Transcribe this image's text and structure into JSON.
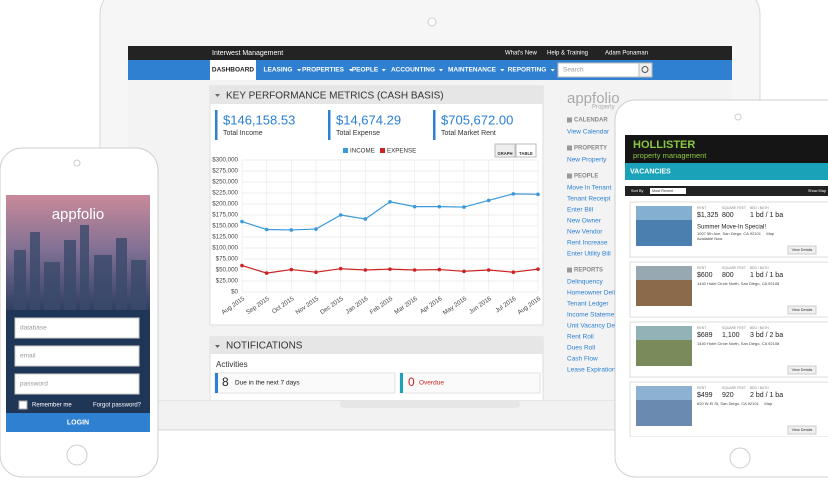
{
  "header": {
    "company": "Interwest Management",
    "links": [
      "What's New",
      "Help & Training",
      "Adam Ponaman"
    ]
  },
  "nav": {
    "items": [
      "DASHBOARD",
      "LEASING",
      "PROPERTIES",
      "PEOPLE",
      "ACCOUNTING",
      "MAINTENANCE",
      "REPORTING"
    ],
    "search_placeholder": "Search"
  },
  "kpi": {
    "title": "KEY PERFORMANCE METRICS (CASH BASIS)",
    "cards": [
      {
        "value": "$146,158.53",
        "label": "Total Income"
      },
      {
        "value": "$14,674.29",
        "label": "Total Expense"
      },
      {
        "value": "$705,672.00",
        "label": "Total Market Rent"
      }
    ],
    "buttons": [
      "GRAPH",
      "TABLE"
    ]
  },
  "chart_data": {
    "type": "line",
    "categories": [
      "Aug 2015",
      "Sep 2015",
      "Oct 2015",
      "Nov 2015",
      "Dec 2015",
      "Jan 2016",
      "Feb 2016",
      "Mar 2016",
      "Apr 2016",
      "May 2016",
      "Jun 2016",
      "Jul 2016",
      "Aug 2016"
    ],
    "series": [
      {
        "name": "INCOME",
        "color": "#3a9ad9",
        "values": [
          160000,
          142000,
          141000,
          143000,
          175000,
          166000,
          205000,
          194000,
          194000,
          193000,
          208000,
          223000,
          222000
        ]
      },
      {
        "name": "EXPENSE",
        "color": "#cc2222",
        "values": [
          60000,
          43000,
          51000,
          45000,
          53000,
          50000,
          52000,
          50000,
          51000,
          47000,
          50000,
          45000,
          52000
        ]
      }
    ],
    "ylim": [
      0,
      300000
    ],
    "yticks": [
      {
        "value": 0,
        "label": "$0"
      },
      {
        "value": 25000,
        "label": "$25,000"
      },
      {
        "value": 50000,
        "label": "$50,000"
      },
      {
        "value": 75000,
        "label": "$75,000"
      },
      {
        "value": 100000,
        "label": "$100,000"
      },
      {
        "value": 125000,
        "label": "$125,000"
      },
      {
        "value": 150000,
        "label": "$150,000"
      },
      {
        "value": 175000,
        "label": "$175,000"
      },
      {
        "value": 200000,
        "label": "$200,000"
      },
      {
        "value": 225000,
        "label": "$225,000"
      },
      {
        "value": 250000,
        "label": "$250,000"
      },
      {
        "value": 275000,
        "label": "$275,000"
      },
      {
        "value": 300000,
        "label": "$300,000"
      }
    ],
    "grid": true,
    "legend": "top"
  },
  "sidebar": {
    "logo": "appfolio",
    "logo_sub": "Property",
    "sections": [
      {
        "title": "CALENDAR",
        "links": [
          "View Calendar"
        ]
      },
      {
        "title": "PROPERTY",
        "links": [
          "New Property"
        ]
      },
      {
        "title": "PEOPLE",
        "links": [
          "Move In Tenant",
          "Tenant Receipt",
          "Enter Bill",
          "New Owner",
          "New Vendor",
          "Rent Increase",
          "Enter Utility Bill"
        ]
      },
      {
        "title": "REPORTS",
        "links": [
          "Delinquency",
          "Homeowner Delinquency",
          "Tenant Ledger",
          "Income Statement",
          "Unit Vacancy Detail",
          "Rent Roll",
          "Dues Roll",
          "Cash Flow",
          "Lease Expiration Month"
        ]
      }
    ]
  },
  "notifications": {
    "title": "NOTIFICATIONS",
    "subtitle": "Activities",
    "items": [
      {
        "count": 8,
        "label": "Due in the next 7 days"
      },
      {
        "count": 0,
        "label": "Overdue"
      }
    ]
  },
  "phone": {
    "logo": "appfolio",
    "fields": [
      "database",
      "email",
      "password"
    ],
    "remember": "Remember me",
    "forgot": "Forgot password?",
    "button": "LOGIN"
  },
  "tablet": {
    "brand": "HOLLISTER",
    "brand_sub": "property management",
    "heading": "VACANCIES",
    "sort_label": "Sort By",
    "sort_value": "Most Recent",
    "show_map": "Show Map",
    "col_labels": [
      "RENT",
      "SQUARE FEET",
      "BED / BATH"
    ],
    "button": "View Details",
    "listings": [
      {
        "rent": "$1,325",
        "sqft": "800",
        "bed": "1 bd / 1 ba",
        "title": "Summer Move-In Special!",
        "address": "1007 5th Ave, San Diego, CA 92101",
        "map": "Map",
        "available": "Available Now"
      },
      {
        "rent": "$600",
        "sqft": "800",
        "bed": "1 bd / 1 ba",
        "address": "1440 Hotel Circle North, San Diego, CA 92108"
      },
      {
        "rent": "$689",
        "sqft": "1,100",
        "bed": "3 bd / 2 ba",
        "address": "1440 Hotel Circle North, San Diego, CA 92108"
      },
      {
        "rent": "$499",
        "sqft": "920",
        "bed": "2 bd / 1 ba",
        "address": "620 W El St, San Diego, CA 92101",
        "map": "Map"
      }
    ]
  }
}
